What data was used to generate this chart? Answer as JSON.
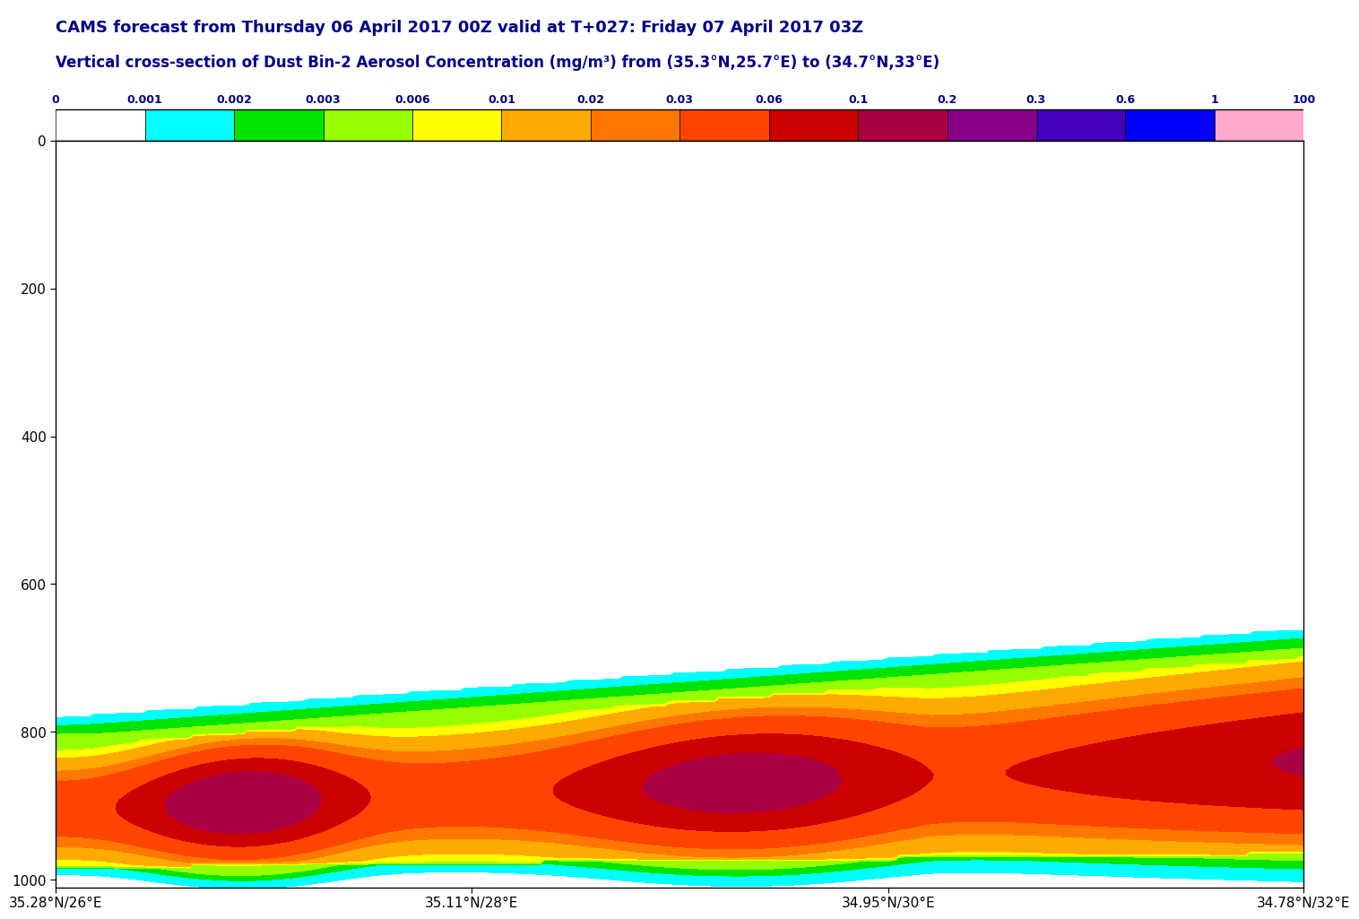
{
  "title1": "CAMS forecast from Thursday 06 April 2017 00Z valid at T+027: Friday 07 April 2017 03Z",
  "title2": "Vertical cross-section of Dust Bin-2 Aerosol Concentration (mg/m³) from (35.3°N,25.7°E) to (34.7°N,33°E)",
  "title_color": "#00008B",
  "colorbar_levels": [
    0,
    0.001,
    0.002,
    0.003,
    0.006,
    0.01,
    0.02,
    0.03,
    0.06,
    0.1,
    0.2,
    0.3,
    0.6,
    1,
    100
  ],
  "colorbar_colors": [
    "#ffffff",
    "#00ffff",
    "#00e400",
    "#96ff00",
    "#ffff00",
    "#ffaa00",
    "#ff7700",
    "#ff4400",
    "#cc0000",
    "#aa0044",
    "#880088",
    "#4400bb",
    "#0000ff",
    "#ffaacc"
  ],
  "yticks": [
    0,
    200,
    400,
    600,
    800,
    1000
  ],
  "ylim": [
    0,
    1010
  ],
  "xtick_labels": [
    "35.28°N/26°E",
    "35.11°N/28°E",
    "34.95°N/30°E",
    "34.78°N/32°E"
  ],
  "xtick_positions": [
    0.0,
    0.333,
    0.667,
    1.0
  ],
  "background_color": "#ffffff",
  "plot_background": "#ffffff"
}
